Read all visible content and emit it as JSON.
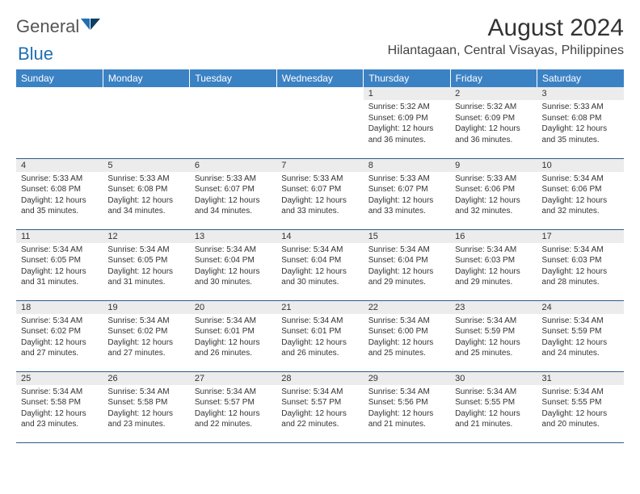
{
  "brand": {
    "word1": "General",
    "word2": "Blue"
  },
  "title": "August 2024",
  "location": "Hilantagaan, Central Visayas, Philippines",
  "colors": {
    "header_bg": "#3b82c4",
    "header_text": "#ffffff",
    "daynum_bg": "#ececec",
    "border": "#2b5d8a",
    "body_text": "#333333",
    "logo_gray": "#6b6b6b",
    "logo_blue": "#1f6fb2"
  },
  "weekdays": [
    "Sunday",
    "Monday",
    "Tuesday",
    "Wednesday",
    "Thursday",
    "Friday",
    "Saturday"
  ],
  "weeks": [
    [
      {
        "n": "",
        "sr": "",
        "ss": "",
        "dl": ""
      },
      {
        "n": "",
        "sr": "",
        "ss": "",
        "dl": ""
      },
      {
        "n": "",
        "sr": "",
        "ss": "",
        "dl": ""
      },
      {
        "n": "",
        "sr": "",
        "ss": "",
        "dl": ""
      },
      {
        "n": "1",
        "sr": "Sunrise: 5:32 AM",
        "ss": "Sunset: 6:09 PM",
        "dl": "Daylight: 12 hours and 36 minutes."
      },
      {
        "n": "2",
        "sr": "Sunrise: 5:32 AM",
        "ss": "Sunset: 6:09 PM",
        "dl": "Daylight: 12 hours and 36 minutes."
      },
      {
        "n": "3",
        "sr": "Sunrise: 5:33 AM",
        "ss": "Sunset: 6:08 PM",
        "dl": "Daylight: 12 hours and 35 minutes."
      }
    ],
    [
      {
        "n": "4",
        "sr": "Sunrise: 5:33 AM",
        "ss": "Sunset: 6:08 PM",
        "dl": "Daylight: 12 hours and 35 minutes."
      },
      {
        "n": "5",
        "sr": "Sunrise: 5:33 AM",
        "ss": "Sunset: 6:08 PM",
        "dl": "Daylight: 12 hours and 34 minutes."
      },
      {
        "n": "6",
        "sr": "Sunrise: 5:33 AM",
        "ss": "Sunset: 6:07 PM",
        "dl": "Daylight: 12 hours and 34 minutes."
      },
      {
        "n": "7",
        "sr": "Sunrise: 5:33 AM",
        "ss": "Sunset: 6:07 PM",
        "dl": "Daylight: 12 hours and 33 minutes."
      },
      {
        "n": "8",
        "sr": "Sunrise: 5:33 AM",
        "ss": "Sunset: 6:07 PM",
        "dl": "Daylight: 12 hours and 33 minutes."
      },
      {
        "n": "9",
        "sr": "Sunrise: 5:33 AM",
        "ss": "Sunset: 6:06 PM",
        "dl": "Daylight: 12 hours and 32 minutes."
      },
      {
        "n": "10",
        "sr": "Sunrise: 5:34 AM",
        "ss": "Sunset: 6:06 PM",
        "dl": "Daylight: 12 hours and 32 minutes."
      }
    ],
    [
      {
        "n": "11",
        "sr": "Sunrise: 5:34 AM",
        "ss": "Sunset: 6:05 PM",
        "dl": "Daylight: 12 hours and 31 minutes."
      },
      {
        "n": "12",
        "sr": "Sunrise: 5:34 AM",
        "ss": "Sunset: 6:05 PM",
        "dl": "Daylight: 12 hours and 31 minutes."
      },
      {
        "n": "13",
        "sr": "Sunrise: 5:34 AM",
        "ss": "Sunset: 6:04 PM",
        "dl": "Daylight: 12 hours and 30 minutes."
      },
      {
        "n": "14",
        "sr": "Sunrise: 5:34 AM",
        "ss": "Sunset: 6:04 PM",
        "dl": "Daylight: 12 hours and 30 minutes."
      },
      {
        "n": "15",
        "sr": "Sunrise: 5:34 AM",
        "ss": "Sunset: 6:04 PM",
        "dl": "Daylight: 12 hours and 29 minutes."
      },
      {
        "n": "16",
        "sr": "Sunrise: 5:34 AM",
        "ss": "Sunset: 6:03 PM",
        "dl": "Daylight: 12 hours and 29 minutes."
      },
      {
        "n": "17",
        "sr": "Sunrise: 5:34 AM",
        "ss": "Sunset: 6:03 PM",
        "dl": "Daylight: 12 hours and 28 minutes."
      }
    ],
    [
      {
        "n": "18",
        "sr": "Sunrise: 5:34 AM",
        "ss": "Sunset: 6:02 PM",
        "dl": "Daylight: 12 hours and 27 minutes."
      },
      {
        "n": "19",
        "sr": "Sunrise: 5:34 AM",
        "ss": "Sunset: 6:02 PM",
        "dl": "Daylight: 12 hours and 27 minutes."
      },
      {
        "n": "20",
        "sr": "Sunrise: 5:34 AM",
        "ss": "Sunset: 6:01 PM",
        "dl": "Daylight: 12 hours and 26 minutes."
      },
      {
        "n": "21",
        "sr": "Sunrise: 5:34 AM",
        "ss": "Sunset: 6:01 PM",
        "dl": "Daylight: 12 hours and 26 minutes."
      },
      {
        "n": "22",
        "sr": "Sunrise: 5:34 AM",
        "ss": "Sunset: 6:00 PM",
        "dl": "Daylight: 12 hours and 25 minutes."
      },
      {
        "n": "23",
        "sr": "Sunrise: 5:34 AM",
        "ss": "Sunset: 5:59 PM",
        "dl": "Daylight: 12 hours and 25 minutes."
      },
      {
        "n": "24",
        "sr": "Sunrise: 5:34 AM",
        "ss": "Sunset: 5:59 PM",
        "dl": "Daylight: 12 hours and 24 minutes."
      }
    ],
    [
      {
        "n": "25",
        "sr": "Sunrise: 5:34 AM",
        "ss": "Sunset: 5:58 PM",
        "dl": "Daylight: 12 hours and 23 minutes."
      },
      {
        "n": "26",
        "sr": "Sunrise: 5:34 AM",
        "ss": "Sunset: 5:58 PM",
        "dl": "Daylight: 12 hours and 23 minutes."
      },
      {
        "n": "27",
        "sr": "Sunrise: 5:34 AM",
        "ss": "Sunset: 5:57 PM",
        "dl": "Daylight: 12 hours and 22 minutes."
      },
      {
        "n": "28",
        "sr": "Sunrise: 5:34 AM",
        "ss": "Sunset: 5:57 PM",
        "dl": "Daylight: 12 hours and 22 minutes."
      },
      {
        "n": "29",
        "sr": "Sunrise: 5:34 AM",
        "ss": "Sunset: 5:56 PM",
        "dl": "Daylight: 12 hours and 21 minutes."
      },
      {
        "n": "30",
        "sr": "Sunrise: 5:34 AM",
        "ss": "Sunset: 5:55 PM",
        "dl": "Daylight: 12 hours and 21 minutes."
      },
      {
        "n": "31",
        "sr": "Sunrise: 5:34 AM",
        "ss": "Sunset: 5:55 PM",
        "dl": "Daylight: 12 hours and 20 minutes."
      }
    ]
  ]
}
